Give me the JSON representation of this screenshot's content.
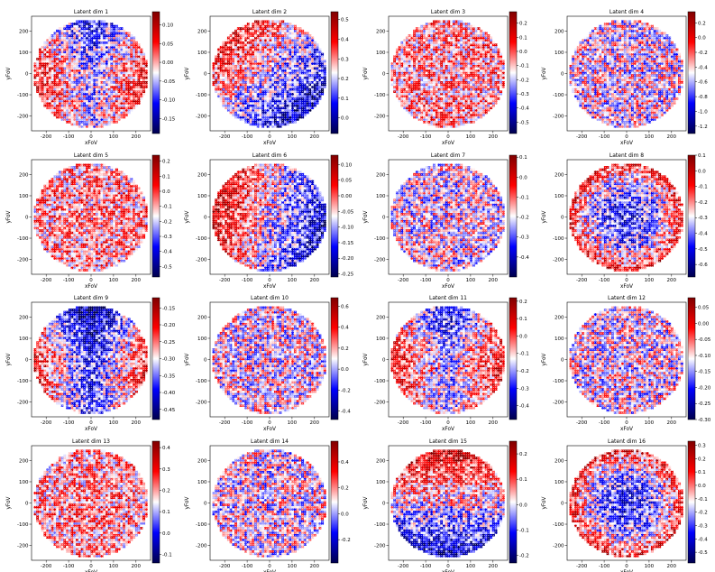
{
  "figure": {
    "x_axis_label": "xFoV",
    "y_axis_label": "yFoV",
    "colormap": "seismic",
    "colormap_stops": [
      "#00004d",
      "#0000ff",
      "#ffffff",
      "#ff0000",
      "#800000"
    ]
  },
  "chart_data": [
    {
      "type": "heatmap",
      "title": "Latent dim 1",
      "xlabel": "xFoV",
      "ylabel": "yFoV",
      "x_ticks": [
        -200,
        -100,
        0,
        100,
        200
      ],
      "y_ticks": [
        -200,
        -100,
        0,
        100,
        200
      ],
      "xlim": [
        -265,
        265
      ],
      "ylim": [
        -270,
        270
      ],
      "colorbar_ticks": [
        "0.10",
        "0.05",
        "0.00",
        "-0.05",
        "-0.10",
        "-0.15"
      ],
      "colorbar_range": [
        -0.19,
        0.135
      ],
      "pattern": "blue-top-center"
    },
    {
      "type": "heatmap",
      "title": "Latent dim 2",
      "xlabel": "xFoV",
      "ylabel": "yFoV",
      "x_ticks": [
        -200,
        -100,
        0,
        100,
        200
      ],
      "y_ticks": [
        -200,
        -100,
        0,
        100,
        200
      ],
      "xlim": [
        -265,
        265
      ],
      "ylim": [
        -270,
        270
      ],
      "colorbar_ticks": [
        "0.5",
        "0.4",
        "0.3",
        "0.2",
        "0.1",
        "0.0"
      ],
      "colorbar_range": [
        -0.08,
        0.54
      ],
      "pattern": "diagonal"
    },
    {
      "type": "heatmap",
      "title": "Latent dim 3",
      "xlabel": "xFoV",
      "ylabel": "yFoV",
      "x_ticks": [
        -200,
        -100,
        0,
        100,
        200
      ],
      "y_ticks": [
        -200,
        -100,
        0,
        100,
        200
      ],
      "xlim": [
        -265,
        265
      ],
      "ylim": [
        -270,
        270
      ],
      "colorbar_ticks": [
        "0.2",
        "0.1",
        "0.0",
        "-0.1",
        "-0.2",
        "-0.3",
        "-0.4",
        "-0.5"
      ],
      "colorbar_range": [
        -0.58,
        0.28
      ],
      "pattern": "noise-red"
    },
    {
      "type": "heatmap",
      "title": "Latent dim 4",
      "xlabel": "xFoV",
      "ylabel": "yFoV",
      "x_ticks": [
        -200,
        -100,
        0,
        100,
        200
      ],
      "y_ticks": [
        -200,
        -100,
        0,
        100,
        200
      ],
      "xlim": [
        -265,
        265
      ],
      "ylim": [
        -270,
        270
      ],
      "colorbar_ticks": [
        "0.2",
        "0.0",
        "-0.2",
        "-0.4",
        "-0.6",
        "-0.8",
        "-1.0",
        "-1.2"
      ],
      "colorbar_range": [
        -1.3,
        0.35
      ],
      "pattern": "noise"
    },
    {
      "type": "heatmap",
      "title": "Latent dim 5",
      "xlabel": "xFoV",
      "ylabel": "yFoV",
      "x_ticks": [
        -200,
        -100,
        0,
        100,
        200
      ],
      "y_ticks": [
        -200,
        -100,
        0,
        100,
        200
      ],
      "xlim": [
        -265,
        265
      ],
      "ylim": [
        -270,
        270
      ],
      "colorbar_ticks": [
        "0.2",
        "0.1",
        "0.0",
        "-0.1",
        "-0.2",
        "-0.3",
        "-0.4",
        "-0.5"
      ],
      "colorbar_range": [
        -0.57,
        0.24
      ],
      "pattern": "noise-red"
    },
    {
      "type": "heatmap",
      "title": "Latent dim 6",
      "xlabel": "xFoV",
      "ylabel": "yFoV",
      "x_ticks": [
        -200,
        -100,
        0,
        100,
        200
      ],
      "y_ticks": [
        -200,
        -100,
        0,
        100,
        200
      ],
      "xlim": [
        -265,
        265
      ],
      "ylim": [
        -270,
        270
      ],
      "colorbar_ticks": [
        "0.10",
        "0.05",
        "0.00",
        "-0.05",
        "-0.10",
        "-0.15",
        "-0.20",
        "-0.25"
      ],
      "colorbar_range": [
        -0.26,
        0.13
      ],
      "pattern": "red-left"
    },
    {
      "type": "heatmap",
      "title": "Latent dim 7",
      "xlabel": "xFoV",
      "ylabel": "yFoV",
      "x_ticks": [
        -200,
        -100,
        0,
        100,
        200
      ],
      "y_ticks": [
        -200,
        -100,
        0,
        100,
        200
      ],
      "xlim": [
        -265,
        265
      ],
      "ylim": [
        -270,
        270
      ],
      "colorbar_ticks": [
        "0.1",
        "0.0",
        "-0.1",
        "-0.2",
        "-0.3",
        "-0.4"
      ],
      "colorbar_range": [
        -0.5,
        0.11
      ],
      "pattern": "noise"
    },
    {
      "type": "heatmap",
      "title": "Latent dim 8",
      "xlabel": "xFoV",
      "ylabel": "yFoV",
      "x_ticks": [
        -200,
        -100,
        0,
        100,
        200
      ],
      "y_ticks": [
        -200,
        -100,
        0,
        100,
        200
      ],
      "xlim": [
        -265,
        265
      ],
      "ylim": [
        -270,
        270
      ],
      "colorbar_ticks": [
        "0.1",
        "0.0",
        "-0.1",
        "-0.2",
        "-0.3",
        "-0.4",
        "-0.5",
        "-0.6"
      ],
      "colorbar_range": [
        -0.68,
        0.1
      ],
      "pattern": "blue-center"
    },
    {
      "type": "heatmap",
      "title": "Latent dim 9",
      "xlabel": "xFoV",
      "ylabel": "yFoV",
      "x_ticks": [
        -200,
        -100,
        0,
        100,
        200
      ],
      "y_ticks": [
        -200,
        -100,
        0,
        100,
        200
      ],
      "xlim": [
        -265,
        265
      ],
      "ylim": [
        -270,
        270
      ],
      "colorbar_ticks": [
        "-0.15",
        "-0.20",
        "-0.25",
        "-0.30",
        "-0.35",
        "-0.40",
        "-0.45"
      ],
      "colorbar_range": [
        -0.48,
        -0.12
      ],
      "pattern": "red-sides"
    },
    {
      "type": "heatmap",
      "title": "Latent dim 10",
      "xlabel": "xFoV",
      "ylabel": "yFoV",
      "x_ticks": [
        -200,
        -100,
        0,
        100,
        200
      ],
      "y_ticks": [
        -200,
        -100,
        0,
        100,
        200
      ],
      "xlim": [
        -265,
        265
      ],
      "ylim": [
        -270,
        270
      ],
      "colorbar_ticks": [
        "0.6",
        "0.4",
        "0.2",
        "0.0",
        "-0.2",
        "-0.4"
      ],
      "colorbar_range": [
        -0.48,
        0.68
      ],
      "pattern": "noise"
    },
    {
      "type": "heatmap",
      "title": "Latent dim 11",
      "xlabel": "xFoV",
      "ylabel": "yFoV",
      "x_ticks": [
        -200,
        -100,
        0,
        100,
        200
      ],
      "y_ticks": [
        -200,
        -100,
        0,
        100,
        200
      ],
      "xlim": [
        -265,
        265
      ],
      "ylim": [
        -270,
        270
      ],
      "colorbar_ticks": [
        "0.2",
        "0.1",
        "0.0",
        "-0.1",
        "-0.2",
        "-0.3",
        "-0.4"
      ],
      "colorbar_range": [
        -0.48,
        0.22
      ],
      "pattern": "blue-top-center"
    },
    {
      "type": "heatmap",
      "title": "Latent dim 12",
      "xlabel": "xFoV",
      "ylabel": "yFoV",
      "x_ticks": [
        -200,
        -100,
        0,
        100,
        200
      ],
      "y_ticks": [
        -200,
        -100,
        0,
        100,
        200
      ],
      "xlim": [
        -265,
        265
      ],
      "ylim": [
        -270,
        270
      ],
      "colorbar_ticks": [
        "0.05",
        "0.00",
        "-0.05",
        "-0.10",
        "-0.15",
        "-0.20",
        "-0.25",
        "-0.30"
      ],
      "colorbar_range": [
        -0.3,
        0.08
      ],
      "pattern": "noise"
    },
    {
      "type": "heatmap",
      "title": "Latent dim 13",
      "xlabel": "xFoV",
      "ylabel": "yFoV",
      "x_ticks": [
        -200,
        -100,
        0,
        100,
        200
      ],
      "y_ticks": [
        -200,
        -100,
        0,
        100,
        200
      ],
      "xlim": [
        -265,
        265
      ],
      "ylim": [
        -270,
        270
      ],
      "colorbar_ticks": [
        "0.4",
        "0.3",
        "0.2",
        "0.1",
        "0.0",
        "-0.1"
      ],
      "colorbar_range": [
        -0.14,
        0.43
      ],
      "pattern": "noise-red"
    },
    {
      "type": "heatmap",
      "title": "Latent dim 14",
      "xlabel": "xFoV",
      "ylabel": "yFoV",
      "x_ticks": [
        -200,
        -100,
        0,
        100,
        200
      ],
      "y_ticks": [
        -200,
        -100,
        0,
        100,
        200
      ],
      "xlim": [
        -265,
        265
      ],
      "ylim": [
        -270,
        270
      ],
      "colorbar_ticks": [
        "0.4",
        "0.2",
        "0.0",
        "-0.2"
      ],
      "colorbar_range": [
        -0.38,
        0.56
      ],
      "pattern": "noise"
    },
    {
      "type": "heatmap",
      "title": "Latent dim 15",
      "xlabel": "xFoV",
      "ylabel": "yFoV",
      "x_ticks": [
        -200,
        -100,
        0,
        100,
        200
      ],
      "y_ticks": [
        -200,
        -100,
        0,
        100,
        200
      ],
      "xlim": [
        -265,
        265
      ],
      "ylim": [
        -270,
        270
      ],
      "colorbar_ticks": [
        "0.2",
        "0.1",
        "0.0",
        "-0.1",
        "-0.2"
      ],
      "colorbar_range": [
        -0.23,
        0.25
      ],
      "pattern": "red-top-blue-bottom"
    },
    {
      "type": "heatmap",
      "title": "Latent dim 16",
      "xlabel": "xFoV",
      "ylabel": "yFoV",
      "x_ticks": [
        -200,
        -100,
        0,
        100,
        200
      ],
      "y_ticks": [
        -200,
        -100,
        0,
        100,
        200
      ],
      "xlim": [
        -265,
        265
      ],
      "ylim": [
        -270,
        270
      ],
      "colorbar_ticks": [
        "0.3",
        "0.2",
        "0.1",
        "0.0",
        "-0.1",
        "-0.2",
        "-0.3",
        "-0.4",
        "-0.5"
      ],
      "colorbar_range": [
        -0.58,
        0.33
      ],
      "pattern": "blue-center"
    }
  ]
}
